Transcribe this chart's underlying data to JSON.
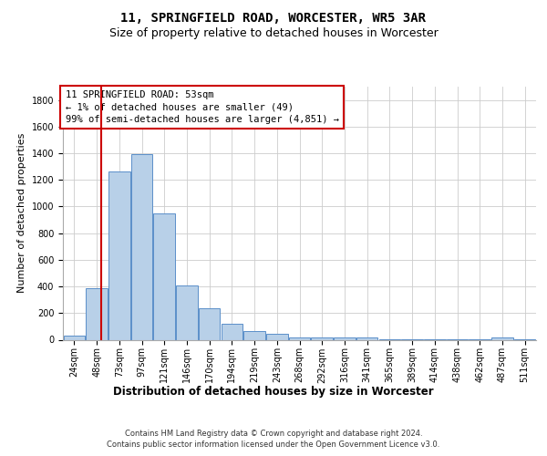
{
  "title": "11, SPRINGFIELD ROAD, WORCESTER, WR5 3AR",
  "subtitle": "Size of property relative to detached houses in Worcester",
  "xlabel": "Distribution of detached houses by size in Worcester",
  "ylabel": "Number of detached properties",
  "bar_color": "#b8d0e8",
  "bar_edge_color": "#5b8fc9",
  "annotation_line_color": "#cc0000",
  "annotation_box_color": "#cc0000",
  "annotation_text": "11 SPRINGFIELD ROAD: 53sqm\n← 1% of detached houses are smaller (49)\n99% of semi-detached houses are larger (4,851) →",
  "footer": "Contains HM Land Registry data © Crown copyright and database right 2024.\nContains public sector information licensed under the Open Government Licence v3.0.",
  "categories": [
    "24sqm",
    "48sqm",
    "73sqm",
    "97sqm",
    "121sqm",
    "146sqm",
    "170sqm",
    "194sqm",
    "219sqm",
    "243sqm",
    "268sqm",
    "292sqm",
    "316sqm",
    "341sqm",
    "365sqm",
    "389sqm",
    "414sqm",
    "438sqm",
    "462sqm",
    "487sqm",
    "511sqm"
  ],
  "values": [
    28,
    390,
    1260,
    1395,
    950,
    410,
    233,
    120,
    65,
    42,
    18,
    18,
    18,
    18,
    4,
    4,
    4,
    4,
    4,
    18,
    4
  ],
  "ylim": [
    0,
    1900
  ],
  "yticks": [
    0,
    200,
    400,
    600,
    800,
    1000,
    1200,
    1400,
    1600,
    1800
  ],
  "background_color": "#ffffff",
  "grid_color": "#cccccc",
  "title_fontsize": 10,
  "subtitle_fontsize": 9,
  "ylabel_fontsize": 8,
  "xlabel_fontsize": 8.5,
  "tick_fontsize": 7,
  "footer_fontsize": 6,
  "ann_fontsize": 7.5
}
